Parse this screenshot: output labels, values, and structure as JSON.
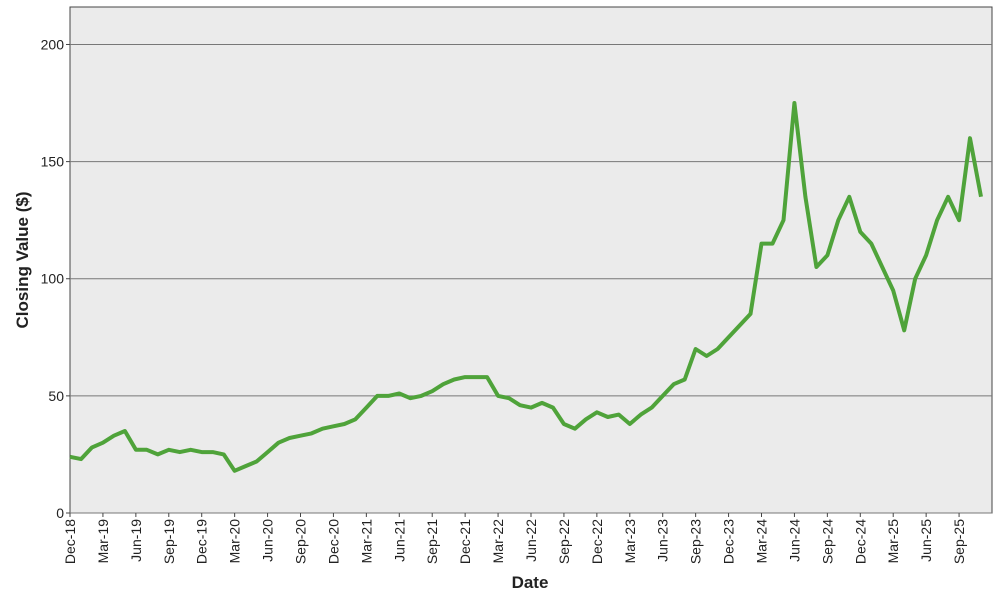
{
  "chart_data": {
    "type": "line",
    "x_label": "Date",
    "y_label": "Closing Value ($)",
    "x": [
      "Dec-18",
      null,
      null,
      "Mar-19",
      null,
      null,
      "Jun-19",
      null,
      null,
      "Sep-19",
      null,
      null,
      "Dec-19",
      null,
      null,
      "Mar-20",
      null,
      null,
      "Jun-20",
      null,
      null,
      "Sep-20",
      null,
      null,
      "Dec-20",
      null,
      null,
      "Mar-21",
      null,
      null,
      "Jun-21",
      null,
      null,
      "Sep-21",
      null,
      null,
      "Dec-21",
      null,
      null,
      "Mar-22",
      null,
      null,
      "Jun-22",
      null,
      null,
      "Sep-22",
      null,
      null,
      "Dec-22",
      null,
      null,
      "Mar-23",
      null,
      null,
      "Jun-23",
      null,
      null,
      "Sep-23",
      null,
      null,
      "Dec-23",
      null,
      null,
      "Mar-24",
      null,
      null,
      "Jun-24",
      null,
      null,
      "Sep-24",
      null,
      null,
      "Dec-24",
      null,
      null,
      "Mar-25",
      null,
      null,
      "Jun-25",
      null,
      null,
      "Sep-25",
      null,
      null
    ],
    "values": [
      24,
      23,
      28,
      30,
      33,
      35,
      27,
      27,
      25,
      27,
      26,
      27,
      26,
      26,
      25,
      18,
      20,
      22,
      26,
      30,
      32,
      33,
      34,
      36,
      37,
      38,
      40,
      45,
      50,
      50,
      51,
      49,
      50,
      52,
      55,
      57,
      58,
      58,
      58,
      50,
      49,
      46,
      45,
      47,
      45,
      38,
      36,
      40,
      43,
      41,
      42,
      38,
      42,
      45,
      50,
      55,
      57,
      70,
      67,
      70,
      75,
      80,
      85,
      115,
      115,
      125,
      175,
      135,
      105,
      110,
      125,
      135,
      120,
      115,
      105,
      95,
      78,
      100,
      110,
      125,
      135,
      125,
      160,
      135
    ],
    "color": "#4fa33a",
    "ylim": [
      0,
      216
    ],
    "yticks": [
      0,
      50,
      100,
      150,
      200
    ],
    "grid": true
  }
}
